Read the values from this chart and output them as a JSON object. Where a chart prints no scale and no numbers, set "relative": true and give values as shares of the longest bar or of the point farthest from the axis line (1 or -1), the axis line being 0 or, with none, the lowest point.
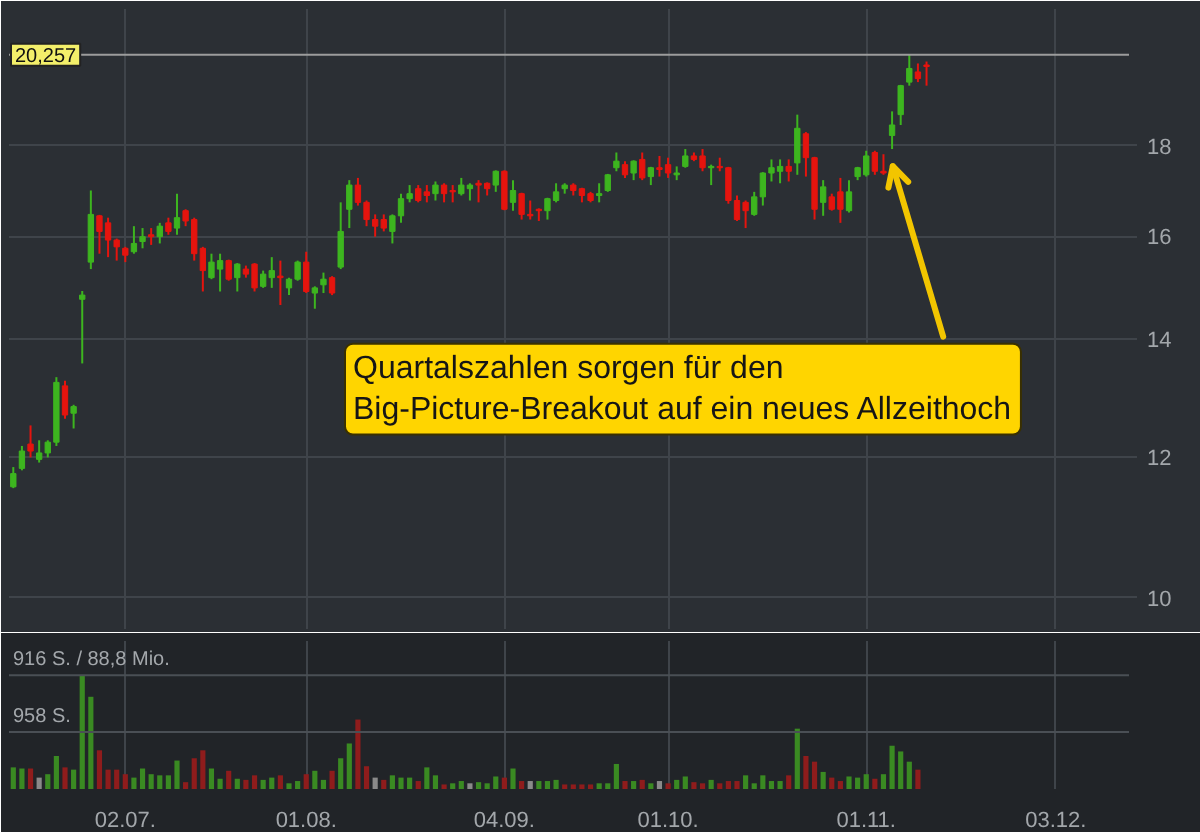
{
  "chart_data": [
    {
      "type": "candlestick",
      "categories": [
        null,
        null,
        null,
        null,
        null,
        null,
        null,
        null,
        null,
        null,
        null,
        null,
        null,
        "02.07.",
        null,
        null,
        null,
        null,
        null,
        null,
        null,
        null,
        null,
        null,
        null,
        null,
        null,
        null,
        null,
        null,
        null,
        null,
        null,
        null,
        "01.08.",
        null,
        null,
        null,
        null,
        null,
        null,
        null,
        null,
        null,
        null,
        null,
        null,
        null,
        null,
        null,
        null,
        null,
        null,
        null,
        null,
        null,
        null,
        "04.09.",
        null,
        null,
        null,
        null,
        null,
        null,
        null,
        null,
        null,
        null,
        null,
        null,
        null,
        null,
        null,
        null,
        null,
        null,
        "01.10.",
        null,
        null,
        null,
        null,
        null,
        null,
        null,
        null,
        null,
        null,
        null,
        null,
        null,
        null,
        null,
        null,
        null,
        null,
        null,
        null,
        null,
        null,
        "01.11.",
        null,
        null,
        null,
        null,
        null,
        null,
        null,
        null,
        null,
        null,
        null,
        null,
        null,
        null,
        null,
        null,
        null,
        null,
        null,
        null,
        null,
        "03.12.",
        null,
        null,
        null,
        null,
        null,
        null,
        null,
        null
      ],
      "ohlc": [
        [
          11.55,
          11.85,
          11.53,
          11.75
        ],
        [
          11.83,
          12.18,
          11.8,
          12.1
        ],
        [
          12.21,
          12.51,
          12.0,
          12.1
        ],
        [
          11.97,
          12.27,
          11.92,
          12.07
        ],
        [
          12.07,
          12.27,
          12.0,
          12.24
        ],
        [
          12.24,
          13.32,
          12.18,
          13.23
        ],
        [
          13.17,
          13.26,
          12.62,
          12.68
        ],
        [
          12.71,
          12.85,
          12.46,
          12.82
        ],
        [
          14.74,
          14.9,
          13.56,
          14.82
        ],
        [
          15.47,
          16.98,
          15.33,
          16.46
        ],
        [
          16.43,
          16.45,
          15.64,
          16.1
        ],
        [
          16.28,
          16.39,
          15.57,
          15.92
        ],
        [
          15.92,
          15.95,
          15.5,
          15.78
        ],
        [
          15.75,
          15.78,
          15.47,
          15.61
        ],
        [
          15.68,
          16.21,
          15.64,
          15.85
        ],
        [
          15.89,
          16.17,
          15.75,
          15.99
        ],
        [
          16.03,
          16.17,
          15.82,
          15.99
        ],
        [
          15.99,
          16.28,
          15.85,
          16.21
        ],
        [
          16.28,
          16.39,
          16.03,
          16.1
        ],
        [
          16.17,
          16.91,
          16.03,
          16.39
        ],
        [
          16.54,
          16.57,
          16.21,
          16.32
        ],
        [
          16.35,
          16.39,
          15.5,
          15.64
        ],
        [
          15.75,
          15.78,
          14.89,
          15.3
        ],
        [
          15.16,
          15.64,
          15.13,
          15.47
        ],
        [
          15.33,
          15.64,
          14.89,
          15.5
        ],
        [
          15.5,
          15.52,
          15.1,
          15.13
        ],
        [
          15.16,
          15.45,
          14.89,
          15.43
        ],
        [
          15.33,
          15.4,
          15.16,
          15.23
        ],
        [
          15.43,
          15.45,
          14.89,
          14.96
        ],
        [
          14.99,
          15.3,
          14.96,
          15.23
        ],
        [
          15.16,
          15.57,
          14.96,
          15.3
        ],
        [
          15.19,
          15.5,
          14.63,
          15.16
        ],
        [
          14.96,
          15.16,
          14.82,
          15.13
        ],
        [
          15.13,
          15.5,
          15.1,
          15.47
        ],
        [
          15.47,
          15.68,
          14.86,
          14.89
        ],
        [
          14.86,
          14.99,
          14.56,
          14.96
        ],
        [
          15.02,
          15.26,
          14.86,
          15.13
        ],
        [
          15.16,
          15.19,
          14.82,
          14.86
        ],
        [
          15.37,
          16.72,
          15.33,
          16.1
        ],
        [
          16.57,
          17.21,
          16.17,
          17.1
        ],
        [
          17.1,
          17.26,
          16.65,
          16.72
        ],
        [
          16.72,
          16.76,
          16.21,
          16.35
        ],
        [
          16.35,
          16.46,
          15.99,
          16.21
        ],
        [
          16.35,
          16.46,
          16.1,
          16.17
        ],
        [
          16.1,
          16.46,
          15.85,
          16.43
        ],
        [
          16.43,
          16.91,
          16.28,
          16.8
        ],
        [
          16.8,
          17.1,
          16.72,
          16.91
        ],
        [
          17.02,
          17.1,
          16.72,
          16.76
        ],
        [
          16.95,
          17.1,
          16.72,
          16.87
        ],
        [
          16.91,
          17.18,
          16.76,
          17.1
        ],
        [
          17.1,
          17.14,
          16.72,
          16.91
        ],
        [
          16.98,
          17.1,
          16.72,
          16.95
        ],
        [
          16.91,
          17.26,
          16.87,
          17.1
        ],
        [
          17.02,
          17.14,
          16.76,
          17.1
        ],
        [
          17.14,
          17.21,
          16.72,
          17.1
        ],
        [
          17.14,
          17.16,
          16.87,
          17.02
        ],
        [
          17.1,
          17.43,
          16.95,
          17.41
        ],
        [
          17.41,
          17.43,
          16.55,
          16.57
        ],
        [
          16.72,
          17.21,
          16.54,
          16.98
        ],
        [
          16.91,
          16.93,
          16.35,
          16.46
        ],
        [
          16.46,
          16.76,
          16.35,
          16.43
        ],
        [
          16.57,
          16.59,
          16.32,
          16.54
        ],
        [
          16.54,
          16.82,
          16.35,
          16.8
        ],
        [
          16.76,
          17.14,
          16.72,
          16.95
        ],
        [
          17.02,
          17.14,
          16.91,
          17.1
        ],
        [
          17.1,
          17.14,
          16.87,
          16.98
        ],
        [
          17.02,
          17.04,
          16.72,
          16.87
        ],
        [
          16.91,
          16.95,
          16.72,
          16.76
        ],
        [
          16.87,
          17.14,
          16.72,
          16.91
        ],
        [
          16.98,
          17.35,
          16.95,
          17.33
        ],
        [
          17.49,
          17.84,
          17.41,
          17.64
        ],
        [
          17.56,
          17.64,
          17.26,
          17.33
        ],
        [
          17.37,
          17.66,
          17.21,
          17.64
        ],
        [
          17.68,
          17.84,
          17.21,
          17.26
        ],
        [
          17.29,
          17.51,
          17.1,
          17.49
        ],
        [
          17.49,
          17.76,
          17.29,
          17.45
        ],
        [
          17.56,
          17.72,
          17.26,
          17.37
        ],
        [
          17.33,
          17.52,
          17.21,
          17.37
        ],
        [
          17.52,
          17.92,
          17.49,
          17.76
        ],
        [
          17.76,
          17.84,
          17.64,
          17.68
        ],
        [
          17.76,
          17.92,
          17.41,
          17.49
        ],
        [
          17.49,
          17.56,
          17.1,
          17.52
        ],
        [
          17.52,
          17.72,
          17.41,
          17.49
        ],
        [
          17.49,
          17.51,
          16.69,
          16.76
        ],
        [
          16.76,
          16.87,
          16.32,
          16.35
        ],
        [
          16.72,
          16.76,
          16.17,
          16.54
        ],
        [
          16.46,
          16.95,
          16.43,
          16.84
        ],
        [
          16.84,
          17.39,
          16.65,
          17.37
        ],
        [
          17.37,
          17.68,
          17.18,
          17.49
        ],
        [
          17.41,
          17.68,
          17.14,
          17.52
        ],
        [
          17.52,
          17.68,
          17.18,
          17.41
        ],
        [
          17.6,
          18.74,
          17.33,
          18.41
        ],
        [
          18.28,
          18.32,
          17.29,
          17.72
        ],
        [
          17.72,
          17.74,
          16.35,
          16.57
        ],
        [
          16.72,
          17.21,
          16.43,
          17.06
        ],
        [
          16.84,
          16.91,
          16.54,
          16.57
        ],
        [
          16.95,
          17.26,
          16.28,
          16.57
        ],
        [
          16.54,
          17.21,
          16.5,
          16.95
        ],
        [
          17.29,
          17.51,
          17.21,
          17.49
        ],
        [
          17.33,
          17.88,
          17.29,
          17.76
        ],
        [
          17.84,
          17.88,
          17.33,
          17.41
        ],
        [
          17.41,
          17.8,
          17.33,
          17.37
        ],
        [
          18.24,
          18.82,
          17.92,
          18.49
        ],
        [
          18.74,
          19.48,
          18.49,
          19.46
        ],
        [
          19.55,
          20.26,
          19.46,
          19.9
        ],
        [
          19.81,
          20.03,
          19.55,
          19.64
        ],
        [
          19.99,
          20.08,
          19.46,
          19.95
        ],
        null,
        null,
        null,
        null,
        null,
        null,
        null,
        null,
        null,
        null,
        null,
        null,
        null,
        null,
        null,
        null,
        null,
        null,
        null,
        null,
        null,
        null,
        null
      ],
      "colors": [
        "#3db51f",
        "#3db51f",
        "#e5140e",
        "#3db51f",
        "#3db51f",
        "#3db51f",
        "#e5140e",
        "#3db51f",
        "#3db51f",
        "#3db51f",
        "#e5140e",
        "#e5140e",
        "#e5140e",
        "#e5140e",
        "#3db51f",
        "#3db51f",
        "#e5140e",
        "#3db51f",
        "#e5140e",
        "#3db51f",
        "#e5140e",
        "#e5140e",
        "#e5140e",
        "#3db51f",
        "#3db51f",
        "#e5140e",
        "#3db51f",
        "#e5140e",
        "#e5140e",
        "#3db51f",
        "#3db51f",
        "#e5140e",
        "#3db51f",
        "#3db51f",
        "#e5140e",
        "#3db51f",
        "#3db51f",
        "#e5140e",
        "#3db51f",
        "#3db51f",
        "#e5140e",
        "#e5140e",
        "#e5140e",
        "#e5140e",
        "#3db51f",
        "#3db51f",
        "#3db51f",
        "#e5140e",
        "#e5140e",
        "#3db51f",
        "#e5140e",
        "#e5140e",
        "#3db51f",
        "#3db51f",
        "#e5140e",
        "#e5140e",
        "#3db51f",
        "#e5140e",
        "#3db51f",
        "#e5140e",
        "#e5140e",
        "#e5140e",
        "#3db51f",
        "#3db51f",
        "#3db51f",
        "#e5140e",
        "#e5140e",
        "#e5140e",
        "#3db51f",
        "#3db51f",
        "#3db51f",
        "#e5140e",
        "#3db51f",
        "#e5140e",
        "#3db51f",
        "#e5140e",
        "#e5140e",
        "#3db51f",
        "#3db51f",
        "#e5140e",
        "#e5140e",
        "#3db51f",
        "#e5140e",
        "#e5140e",
        "#e5140e",
        "#e5140e",
        "#3db51f",
        "#3db51f",
        "#3db51f",
        "#3db51f",
        "#e5140e",
        "#3db51f",
        "#e5140e",
        "#e5140e",
        "#3db51f",
        "#e5140e",
        "#e5140e",
        "#3db51f",
        "#3db51f",
        "#3db51f",
        "#e5140e",
        "#e5140e",
        "#3db51f",
        "#3db51f",
        "#3db51f",
        "#e5140e",
        "#e5140e",
        null,
        null,
        null,
        null,
        null,
        null,
        null,
        null,
        null,
        null,
        null,
        null,
        null,
        null,
        null,
        null,
        null,
        null,
        null,
        null,
        null,
        null,
        null
      ],
      "log": true,
      "ylim": [
        9.6,
        21.5
      ],
      "yticks": [
        10,
        12,
        14,
        16,
        18
      ],
      "grid": true,
      "tick_labels": "y",
      "ref_lines": [
        {
          "axis": "y",
          "value": 20.257,
          "label": "20,257",
          "color": "#9c9c9c"
        }
      ],
      "annotations": [
        "Quartalszahlen sorgen für den\nBig-Picture-Breakout auf ein neues Allzeithoch"
      ]
    },
    {
      "type": "bar",
      "relative": true,
      "categories": [
        null,
        null,
        null,
        null,
        null,
        null,
        null,
        null,
        null,
        null,
        null,
        null,
        null,
        "02.07.",
        null,
        null,
        null,
        null,
        null,
        null,
        null,
        null,
        null,
        null,
        null,
        null,
        null,
        null,
        null,
        null,
        null,
        null,
        null,
        null,
        "01.08.",
        null,
        null,
        null,
        null,
        null,
        null,
        null,
        null,
        null,
        null,
        null,
        null,
        null,
        null,
        null,
        null,
        null,
        null,
        null,
        null,
        null,
        null,
        "04.09.",
        null,
        null,
        null,
        null,
        null,
        null,
        null,
        null,
        null,
        null,
        null,
        null,
        null,
        null,
        null,
        null,
        null,
        null,
        "01.10.",
        null,
        null,
        null,
        null,
        null,
        null,
        null,
        null,
        null,
        null,
        null,
        null,
        null,
        null,
        null,
        null,
        null,
        null,
        null,
        null,
        null,
        null,
        "01.11.",
        null,
        null,
        null,
        null,
        null,
        null,
        null,
        null,
        null,
        null,
        null,
        null,
        null,
        null,
        null,
        null,
        null,
        null,
        null,
        null,
        null,
        "03.12.",
        null,
        null,
        null,
        null,
        null,
        null,
        null,
        null
      ],
      "values": [
        0.19,
        0.18,
        0.18,
        0.1,
        0.13,
        0.29,
        0.19,
        0.17,
        1,
        0.81,
        0.34,
        0.17,
        0.17,
        0.13,
        0.1,
        0.18,
        0.13,
        0.12,
        0.12,
        0.25,
        0.06,
        0.27,
        0.34,
        0.18,
        0.09,
        0.16,
        0.09,
        0.08,
        0.12,
        0.08,
        0.1,
        0.12,
        0.05,
        0.07,
        0.13,
        0.16,
        0.08,
        0.16,
        0.27,
        0.4,
        0.61,
        0.2,
        0.1,
        0.08,
        0.12,
        0.1,
        0.1,
        0.07,
        0.19,
        0.12,
        0.04,
        0.05,
        0.07,
        0.05,
        0.06,
        0.05,
        0.11,
        0.1,
        0.18,
        0.07,
        0.07,
        0.07,
        0.07,
        0.08,
        0.04,
        0.04,
        0.04,
        0.04,
        0.05,
        0.05,
        0.22,
        0.07,
        0.07,
        0.08,
        0.05,
        0.07,
        0.05,
        0.08,
        0.11,
        0.06,
        0.05,
        0.08,
        0.05,
        0.07,
        0.07,
        0.12,
        0.05,
        0.12,
        0.07,
        0.07,
        0.12,
        0.53,
        0.29,
        0.24,
        0.15,
        0.1,
        0.07,
        0.11,
        0.1,
        0.13,
        0.09,
        0.13,
        0.38,
        0.33,
        0.24,
        0.17,
        null,
        null,
        null,
        null,
        null,
        null,
        null,
        null,
        null,
        null,
        null,
        null,
        null,
        null,
        null,
        null,
        null,
        null,
        null,
        null,
        null,
        null,
        null,
        null
      ],
      "colors": [
        "#3a8a22",
        "#3a8a22",
        "#8f1c1c",
        "#8a8a8a",
        "#3a8a22",
        "#3a8a22",
        "#8f1c1c",
        "#3a8a22",
        "#3a8a22",
        "#3a8a22",
        "#8f1c1c",
        "#8f1c1c",
        "#8f1c1c",
        "#8f1c1c",
        "#3a8a22",
        "#3a8a22",
        "#3a8a22",
        "#3a8a22",
        "#3a8a22",
        "#3a8a22",
        "#8f1c1c",
        "#8f1c1c",
        "#8f1c1c",
        "#3a8a22",
        "#3a8a22",
        "#8f1c1c",
        "#3a8a22",
        "#8f1c1c",
        "#8f1c1c",
        "#3a8a22",
        "#3a8a22",
        "#8f1c1c",
        "#3a8a22",
        "#3a8a22",
        "#8f1c1c",
        "#3a8a22",
        "#3a8a22",
        "#8f1c1c",
        "#3a8a22",
        "#3a8a22",
        "#8f1c1c",
        "#8f1c1c",
        "#8a8a8a",
        "#8f1c1c",
        "#3a8a22",
        "#3a8a22",
        "#3a8a22",
        "#8f1c1c",
        "#3a8a22",
        "#3a8a22",
        "#8f1c1c",
        "#3a8a22",
        "#3a8a22",
        "#8a8a8a",
        "#3a8a22",
        "#3a8a22",
        "#3a8a22",
        "#8f1c1c",
        "#3a8a22",
        "#8f1c1c",
        "#8a8a8a",
        "#3a8a22",
        "#3a8a22",
        "#3a8a22",
        "#8f1c1c",
        "#8f1c1c",
        "#8f1c1c",
        "#8f1c1c",
        "#3a8a22",
        "#3a8a22",
        "#3a8a22",
        "#8f1c1c",
        "#3a8a22",
        "#8f1c1c",
        "#3a8a22",
        "#8a8a8a",
        "#8f1c1c",
        "#3a8a22",
        "#3a8a22",
        "#8f1c1c",
        "#8f1c1c",
        "#3a8a22",
        "#8f1c1c",
        "#8f1c1c",
        "#8f1c1c",
        "#3a8a22",
        "#3a8a22",
        "#3a8a22",
        "#3a8a22",
        "#3a8a22",
        "#8f1c1c",
        "#3a8a22",
        "#8f1c1c",
        "#8f1c1c",
        "#3a8a22",
        "#8f1c1c",
        "#8f1c1c",
        "#3a8a22",
        "#3a8a22",
        "#3a8a22",
        "#8f1c1c",
        "#3a8a22",
        "#3a8a22",
        "#3a8a22",
        "#3a8a22",
        "#8f1c1c",
        null,
        null,
        null,
        null,
        null,
        null,
        null,
        null,
        null,
        null,
        null,
        null,
        null,
        null,
        null,
        null,
        null,
        null,
        null,
        null,
        null,
        null,
        null,
        null
      ],
      "grid": "x",
      "tick_labels": "x",
      "ref_lines": [
        {
          "axis": "y",
          "value": 1,
          "label": "916 S. / 88,8 Mio.",
          "color": "#4a4f55"
        },
        {
          "axis": "y",
          "value": 0.5,
          "label": "958 S.",
          "color": "#4a4f55"
        }
      ]
    }
  ]
}
